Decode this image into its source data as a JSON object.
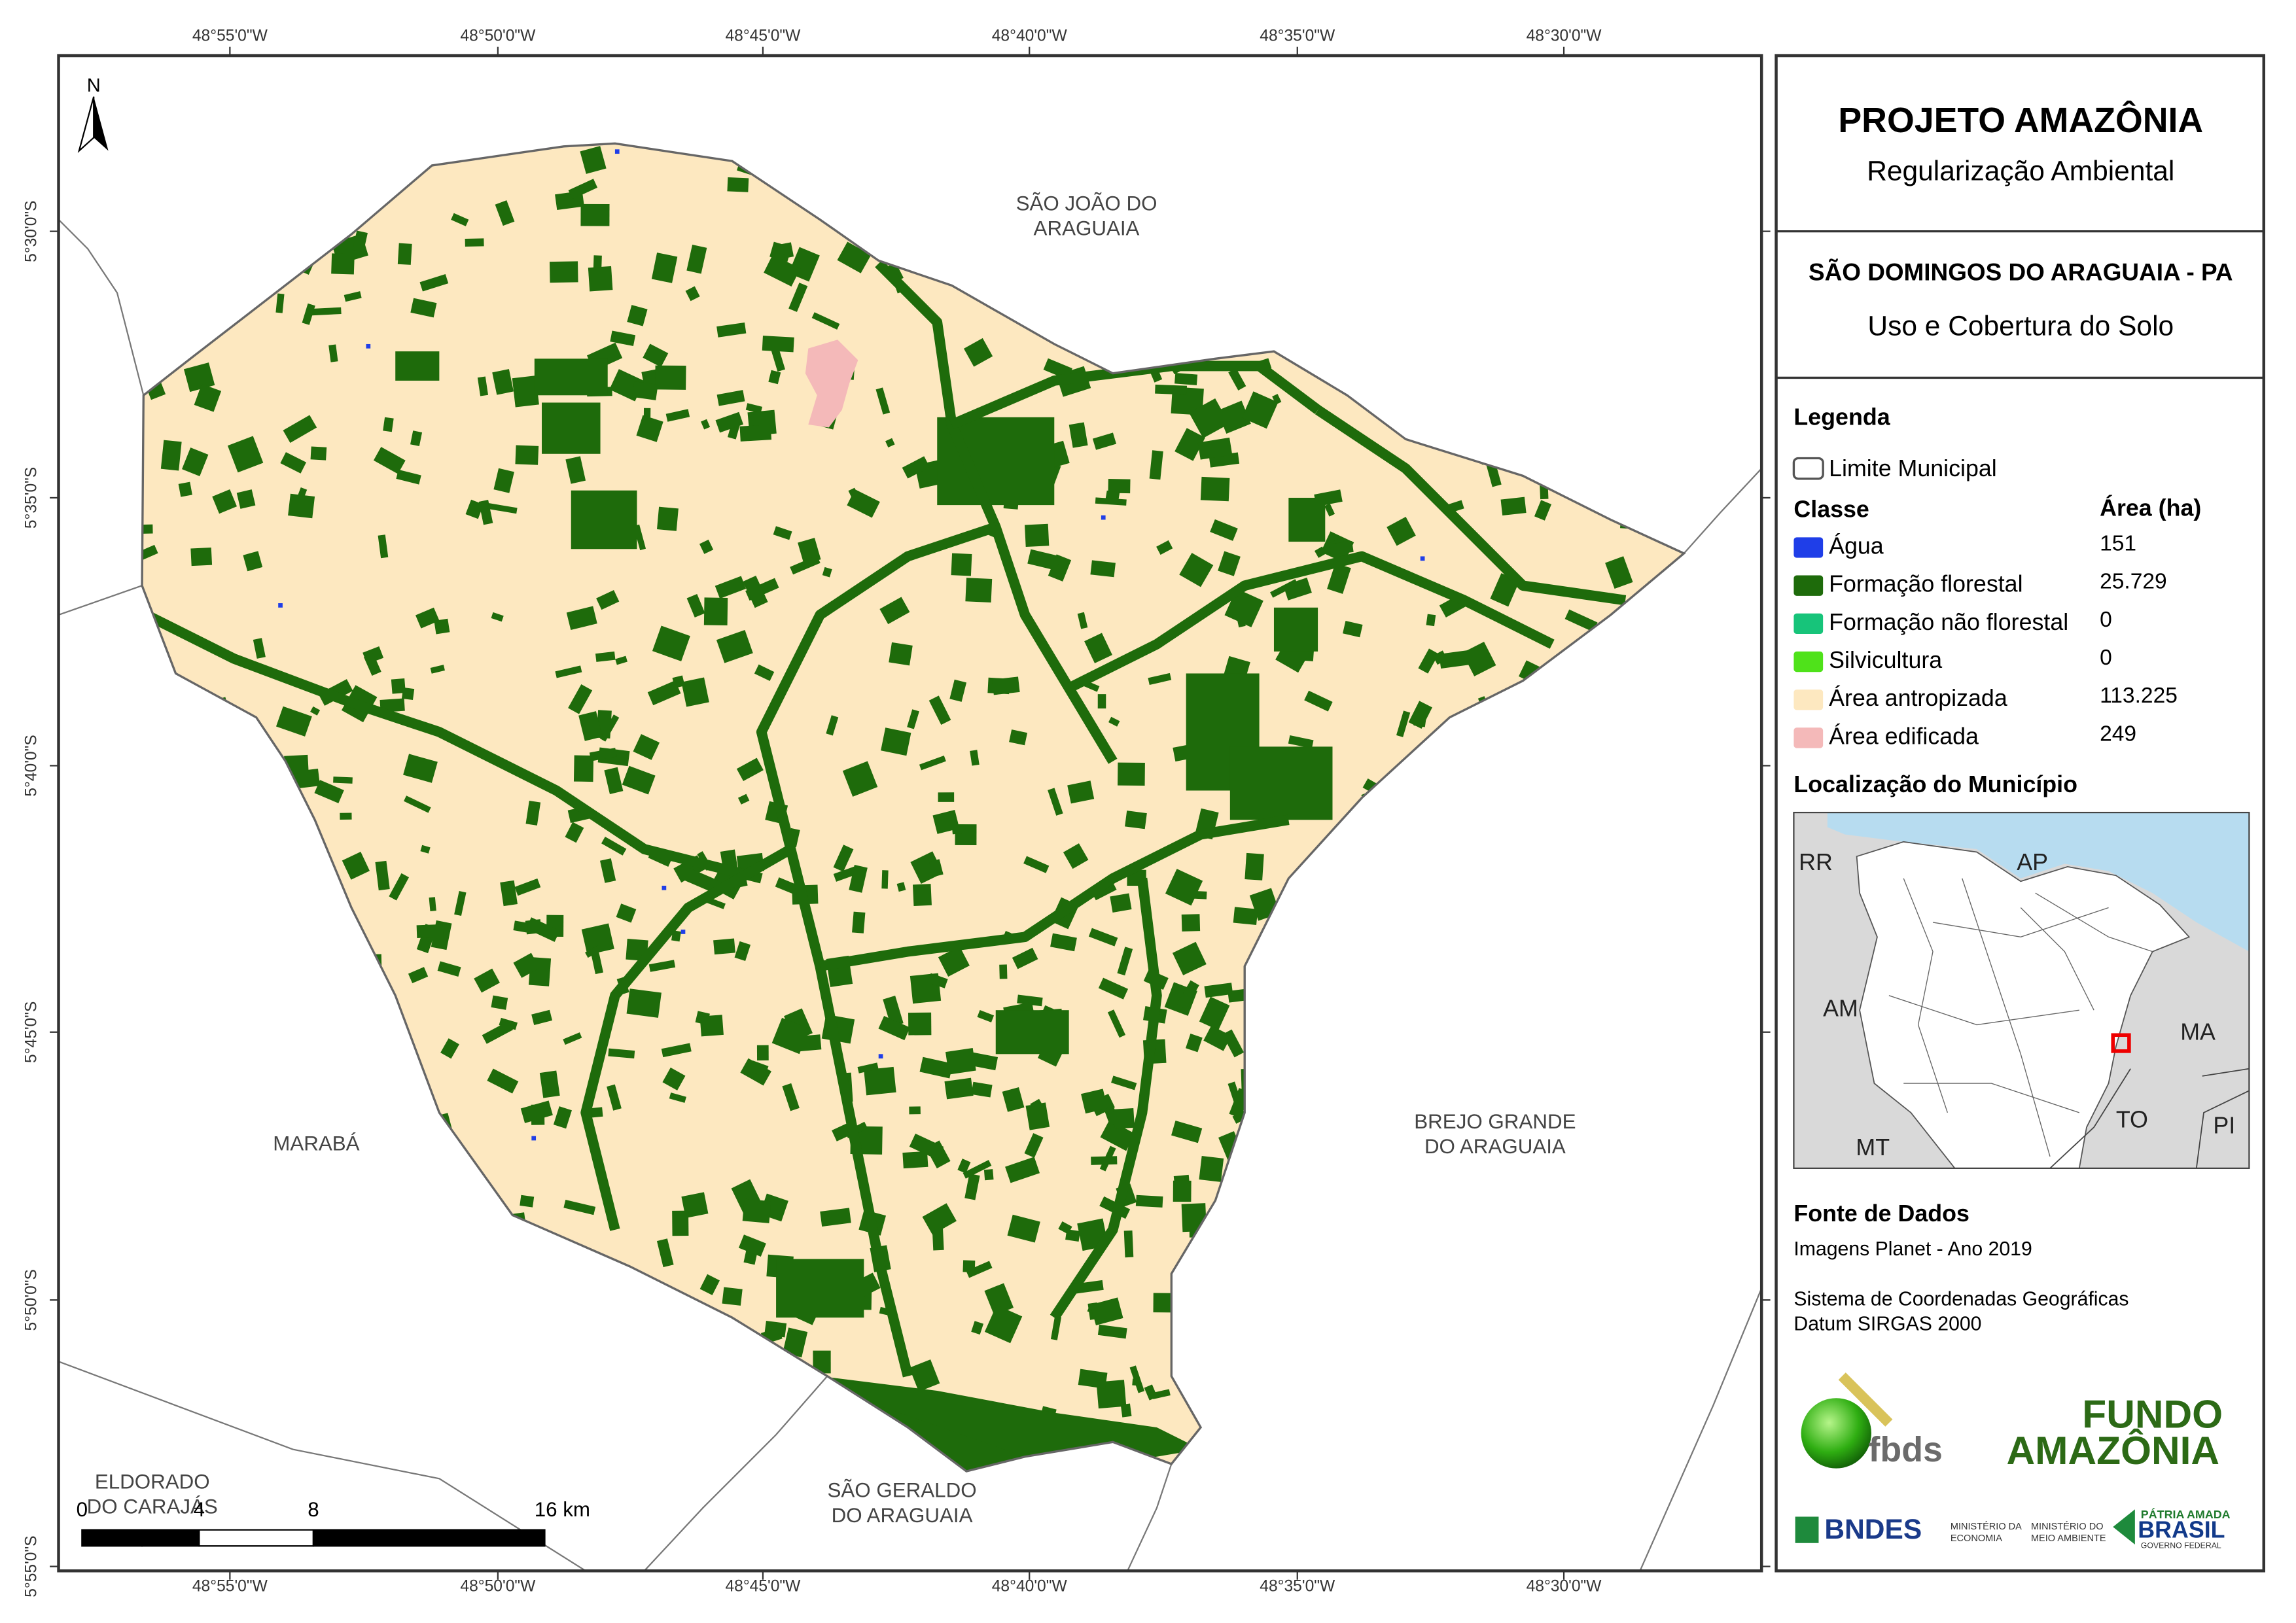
{
  "header": {
    "title": "PROJETO AMAZÔNIA",
    "subtitle": "Regularização Ambiental"
  },
  "map_title": {
    "municipality": "SÃO DOMINGOS DO ARAGUAIA - PA",
    "theme": "Uso e Cobertura do Solo"
  },
  "legend": {
    "title": "Legenda",
    "boundary": "Limite Municipal",
    "class_header": "Classe",
    "area_header": "Área (ha)",
    "classes": [
      {
        "label": "Água",
        "area": "151",
        "color": "#1f3ee8"
      },
      {
        "label": "Formação florestal",
        "area": "25.729",
        "color": "#1e6b0b"
      },
      {
        "label": "Formação não florestal",
        "area": "0",
        "color": "#17c47a"
      },
      {
        "label": "Silvicultura",
        "area": "0",
        "color": "#4fe21a"
      },
      {
        "label": "Área antropizada",
        "area": "113.225",
        "color": "#fde8c0"
      },
      {
        "label": "Área edificada",
        "area": "249",
        "color": "#f4b9b9"
      }
    ]
  },
  "location": {
    "title": "Localização do Município",
    "labels": [
      "RR",
      "AP",
      "AM",
      "MA",
      "MT",
      "TO",
      "PI"
    ]
  },
  "sources": {
    "title": "Fonte de Dados",
    "lines": [
      "Imagens Planet - Ano 2019",
      "Sistema de Coordenadas Geográficas",
      "Datum SIRGAS 2000"
    ]
  },
  "map": {
    "north": "N",
    "places": [
      {
        "lines": [
          "SÃO JOÃO DO",
          "ARAGUAIA"
        ]
      },
      {
        "lines": [
          "MARABÁ"
        ]
      },
      {
        "lines": [
          "BREJO GRANDE",
          "DO ARAGUAIA"
        ]
      },
      {
        "lines": [
          "ELDORADO",
          "DO CARAJÁS"
        ]
      },
      {
        "lines": [
          "SÃO GERALDO",
          "DO ARAGUAIA"
        ]
      }
    ],
    "lon_labels": [
      "48°55'0\"W",
      "48°50'0\"W",
      "48°45'0\"W",
      "48°40'0\"W",
      "48°35'0\"W",
      "48°30'0\"W"
    ],
    "lat_labels": [
      "5°30'0\"S",
      "5°35'0\"S",
      "5°40'0\"S",
      "5°45'0\"S",
      "5°50'0\"S",
      "5°55'0\"S"
    ],
    "scale_labels": [
      "0",
      "4",
      "8",
      "16 km"
    ]
  },
  "logos": {
    "fbds": "fbds",
    "fundo": [
      "FUNDO",
      "AMAZÔNIA"
    ],
    "bndes": "BNDES",
    "min_economia": [
      "MINISTÉRIO DA",
      "ECONOMIA"
    ],
    "min_ambiente": [
      "MINISTÉRIO DO",
      "MEIO AMBIENTE"
    ],
    "brasil": [
      "PÁTRIA AMADA",
      "BRASIL",
      "GOVERNO FEDERAL"
    ]
  }
}
